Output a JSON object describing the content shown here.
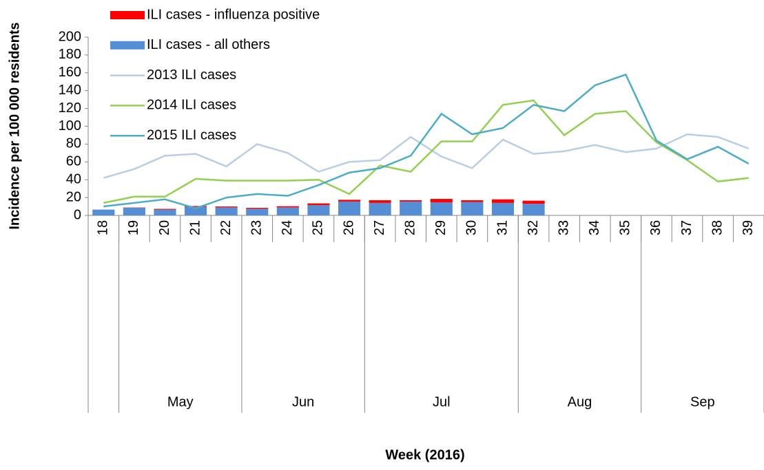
{
  "chart_data": {
    "type": "bar_line",
    "y_label": "Incidence per 100 000 residents",
    "x_label": "Week (2016)",
    "categories": [
      "18",
      "19",
      "20",
      "21",
      "22",
      "23",
      "24",
      "25",
      "26",
      "27",
      "28",
      "29",
      "30",
      "31",
      "32",
      "33",
      "34",
      "35",
      "36",
      "37",
      "38",
      "39"
    ],
    "months": [
      null,
      "May",
      "May",
      "May",
      "May",
      "Jun",
      "Jun",
      "Jun",
      "Jun",
      "Jul",
      "Jul",
      "Jul",
      "Jul",
      "Jul",
      "Aug",
      "Aug",
      "Aug",
      "Aug",
      "Sep",
      "Sep",
      "Sep",
      "Sep"
    ],
    "ylim": [
      0,
      200
    ],
    "yticks": [
      0,
      20,
      40,
      60,
      80,
      100,
      120,
      140,
      160,
      180,
      200
    ],
    "series": [
      {
        "name": "ILI cases - influenza positive",
        "type": "bar",
        "color": "#ff0000",
        "values": [
          0,
          0.3,
          0.8,
          1,
          1,
          1,
          1.3,
          2,
          2,
          3,
          1.5,
          4,
          2,
          4,
          3.5,
          null,
          null,
          null,
          null,
          null,
          null,
          null
        ]
      },
      {
        "name": "ILI cases - all others",
        "type": "bar",
        "color": "#558ed5",
        "values": [
          6.5,
          8.5,
          6.5,
          9.5,
          9,
          7.5,
          9,
          11.5,
          15.5,
          14,
          15.5,
          14.5,
          15,
          14,
          13,
          null,
          null,
          null,
          null,
          null,
          null,
          null
        ]
      },
      {
        "name": "2013 ILI cases",
        "type": "line",
        "color": "#b9cde5",
        "values": [
          42,
          52,
          67,
          69,
          55,
          80,
          70,
          49,
          60,
          62,
          88,
          66,
          53,
          85,
          69,
          72,
          79,
          71,
          75,
          91,
          88,
          75
        ]
      },
      {
        "name": "2014 ILI cases",
        "type": "line",
        "color": "#92d050",
        "values": [
          14,
          21,
          21,
          41,
          39,
          39,
          39,
          40,
          24,
          56,
          49,
          83,
          83,
          124,
          129,
          90,
          114,
          117,
          82,
          62,
          38,
          42
        ]
      },
      {
        "name": "2015 ILI cases",
        "type": "line",
        "color": "#4bacc6",
        "values": [
          10,
          14,
          18,
          8,
          20,
          24,
          22,
          34,
          48,
          53,
          67,
          114,
          91,
          98,
          124,
          117,
          146,
          158,
          84,
          63,
          77,
          58
        ]
      }
    ]
  }
}
